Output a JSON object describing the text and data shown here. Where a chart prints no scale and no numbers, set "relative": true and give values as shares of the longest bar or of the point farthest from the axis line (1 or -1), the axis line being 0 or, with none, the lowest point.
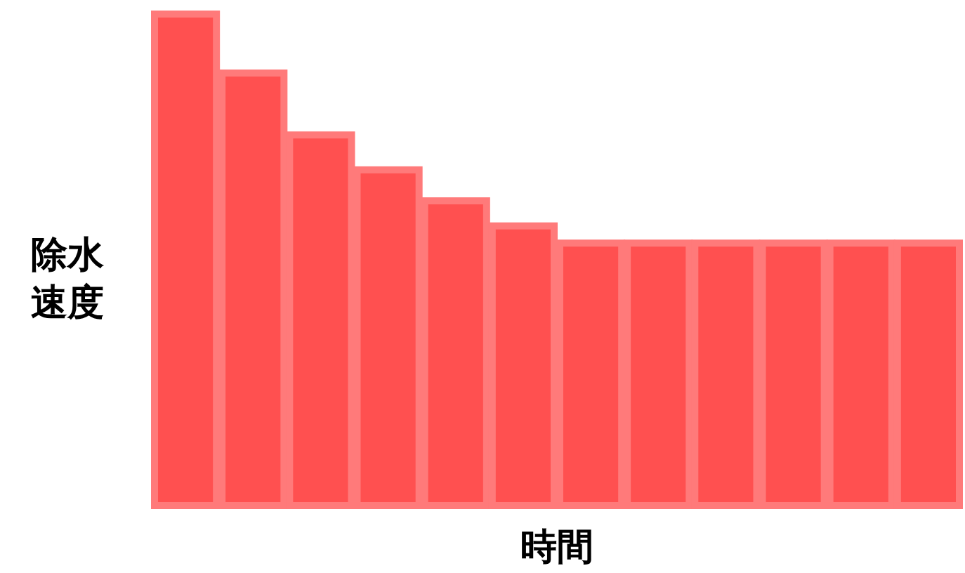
{
  "chart_data": {
    "type": "bar",
    "relative": true,
    "ylabel": "除水速度",
    "xlabel": "時間",
    "categories": [
      null,
      null,
      null,
      null,
      null,
      null,
      null,
      null,
      null,
      null,
      null,
      null
    ],
    "values": [
      1,
      0.88,
      0.754,
      0.683,
      0.62,
      0.569,
      0.534,
      0.534,
      0.534,
      0.534,
      0.534,
      0.534
    ],
    "color": "#ff5050"
  }
}
